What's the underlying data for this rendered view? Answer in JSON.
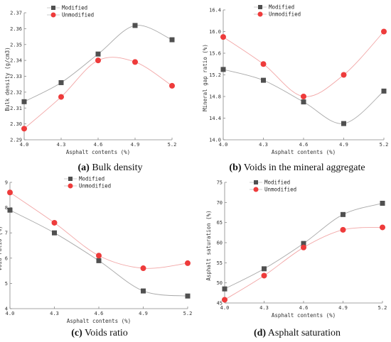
{
  "colors": {
    "modified": "#505050",
    "unmodified": "#ee3b3b",
    "axis": "#888888"
  },
  "chart_data": [
    {
      "type": "line",
      "caption": {
        "label": "(a)",
        "text": "Bulk density"
      },
      "xlabel": "Asphalt contents (%)",
      "ylabel": "Bulk density (g/cm3)",
      "x": [
        4.0,
        4.3,
        4.6,
        4.9,
        5.2
      ],
      "x_ticks": [
        "4.0",
        "4.3",
        "4.6",
        "4.9",
        "5.2"
      ],
      "xlim": [
        4.0,
        5.2
      ],
      "ylim": [
        2.29,
        2.37
      ],
      "y_ticks": [
        "2.29",
        "2.30",
        "2.31",
        "2.32",
        "2.33",
        "2.34",
        "2.35",
        "2.36",
        "2.37"
      ],
      "legend": {
        "placement": "top-left",
        "entries": [
          "Modified",
          "Unmodified"
        ]
      },
      "series": [
        {
          "name": "Modified",
          "marker": "square",
          "values": [
            2.314,
            2.326,
            2.344,
            2.362,
            2.353
          ]
        },
        {
          "name": "Unmodified",
          "marker": "circle",
          "values": [
            2.297,
            2.317,
            2.34,
            2.339,
            2.324
          ]
        }
      ]
    },
    {
      "type": "line",
      "caption": {
        "label": "(b)",
        "text": "Voids in the mineral aggregate"
      },
      "xlabel": "Asphalt contents (%)",
      "ylabel": "Mineral gap ratio (%)",
      "x": [
        4.0,
        4.3,
        4.6,
        4.9,
        5.2
      ],
      "x_ticks": [
        "4.0",
        "4.3",
        "4.6",
        "4.9",
        "5.2"
      ],
      "xlim": [
        4.0,
        5.2
      ],
      "ylim": [
        14.0,
        16.4
      ],
      "y_ticks": [
        "14.0",
        "14.4",
        "14.8",
        "15.2",
        "15.6",
        "16.0",
        "16.4"
      ],
      "legend": {
        "placement": "top-center",
        "entries": [
          "Modified",
          "Unmodified"
        ]
      },
      "series": [
        {
          "name": "Modified",
          "marker": "square",
          "values": [
            15.3,
            15.1,
            14.7,
            14.3,
            14.9
          ]
        },
        {
          "name": "Unmodified",
          "marker": "circle",
          "values": [
            15.9,
            15.4,
            14.8,
            15.2,
            16.0
          ]
        }
      ]
    },
    {
      "type": "line",
      "caption": {
        "label": "(c)",
        "text": "Voids ratio"
      },
      "xlabel": "Asphalt contents (%)",
      "ylabel": "Void ratio (%)",
      "x": [
        4.0,
        4.3,
        4.6,
        4.9,
        5.2
      ],
      "x_ticks": [
        "4.0",
        "4.3",
        "4.6",
        "4.9",
        "5.2"
      ],
      "xlim": [
        4.0,
        5.2
      ],
      "ylim": [
        4,
        9
      ],
      "y_ticks": [
        "4",
        "5",
        "6",
        "7",
        "8",
        "9"
      ],
      "legend": {
        "placement": "top-center",
        "entries": [
          "Modified",
          "Unmodified"
        ]
      },
      "series": [
        {
          "name": "Modified",
          "marker": "square",
          "values": [
            7.9,
            7.0,
            5.9,
            4.7,
            4.5
          ]
        },
        {
          "name": "Unmodified",
          "marker": "circle",
          "values": [
            8.6,
            7.4,
            6.1,
            5.6,
            5.8
          ]
        }
      ]
    },
    {
      "type": "line",
      "caption": {
        "label": "(d)",
        "text": "Asphalt saturation"
      },
      "xlabel": "Asphalt contents (%)",
      "ylabel": "Asphalt saturation (%)",
      "x": [
        4.0,
        4.3,
        4.6,
        4.9,
        5.2
      ],
      "x_ticks": [
        "4.0",
        "4.3",
        "4.6",
        "4.9",
        "5.2"
      ],
      "xlim": [
        4.0,
        5.2
      ],
      "ylim": [
        45,
        75
      ],
      "y_ticks": [
        "45",
        "50",
        "55",
        "60",
        "65",
        "70",
        "75"
      ],
      "legend": {
        "placement": "top-center",
        "entries": [
          "Modified",
          "Unmodified"
        ]
      },
      "series": [
        {
          "name": "Modified",
          "marker": "square",
          "values": [
            48.5,
            53.5,
            59.8,
            67.0,
            69.8
          ]
        },
        {
          "name": "Unmodified",
          "marker": "circle",
          "values": [
            45.8,
            51.8,
            58.8,
            63.2,
            63.8
          ]
        }
      ]
    }
  ]
}
